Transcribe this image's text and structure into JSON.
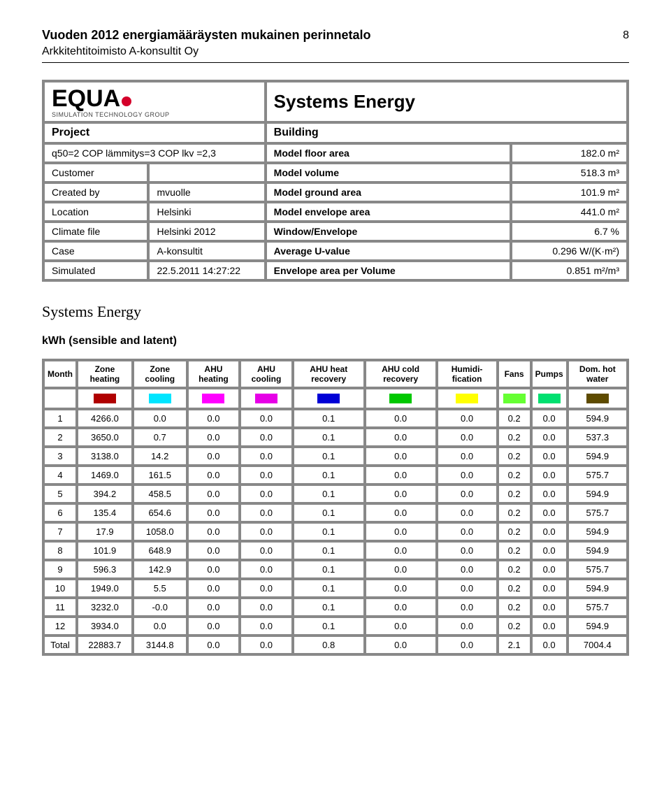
{
  "header": {
    "title": "Vuoden 2012 energiamääräysten mukainen perinnetalo",
    "subtitle": "Arkkitehtitoimisto A-konsultit Oy",
    "page": "8"
  },
  "logo": {
    "text": "EQUA",
    "sub": "SIMULATION TECHNOLOGY GROUP",
    "dot_color": "#d4002a"
  },
  "report_title": "Systems Energy",
  "meta_header": {
    "left": "Project",
    "right": "Building"
  },
  "meta": [
    {
      "l1": "q50=2 COP lämmitys=3 COP lkv =2,3",
      "l2": "",
      "r1": "Model floor area",
      "r2": "182.0 m²"
    },
    {
      "l1": "Customer",
      "l2": "",
      "r1": "Model volume",
      "r2": "518.3 m³"
    },
    {
      "l1": "Created by",
      "l2": "mvuolle",
      "r1": "Model ground area",
      "r2": "101.9 m²"
    },
    {
      "l1": "Location",
      "l2": "Helsinki",
      "r1": "Model envelope area",
      "r2": "441.0 m²"
    },
    {
      "l1": "Climate file",
      "l2": "Helsinki 2012",
      "r1": "Window/Envelope",
      "r2": "6.7 %"
    },
    {
      "l1": "Case",
      "l2": "A-konsultit",
      "r1": "Average U-value",
      "r2": "0.296 W/(K·m²)"
    },
    {
      "l1": "Simulated",
      "l2": "22.5.2011 14:27:22",
      "r1": "Envelope area per Volume",
      "r2": "0.851 m²/m³"
    }
  ],
  "section_title": "Systems Energy",
  "sub_section": "kWh (sensible and latent)",
  "columns": [
    "Month",
    "Zone heating",
    "Zone cooling",
    "AHU heating",
    "AHU cooling",
    "AHU heat recovery",
    "AHU cold recovery",
    "Humidi-fication",
    "Fans",
    "Pumps",
    "Dom. hot water"
  ],
  "swatch_colors": [
    "",
    "#b00000",
    "#00e5ff",
    "#ff00ff",
    "#e600e6",
    "#0000d6",
    "#00c800",
    "#ffff00",
    "#66ff33",
    "#00e070",
    "#5e4b00"
  ],
  "rows": [
    [
      "1",
      "4266.0",
      "0.0",
      "0.0",
      "0.0",
      "0.1",
      "0.0",
      "0.0",
      "0.2",
      "0.0",
      "594.9"
    ],
    [
      "2",
      "3650.0",
      "0.7",
      "0.0",
      "0.0",
      "0.1",
      "0.0",
      "0.0",
      "0.2",
      "0.0",
      "537.3"
    ],
    [
      "3",
      "3138.0",
      "14.2",
      "0.0",
      "0.0",
      "0.1",
      "0.0",
      "0.0",
      "0.2",
      "0.0",
      "594.9"
    ],
    [
      "4",
      "1469.0",
      "161.5",
      "0.0",
      "0.0",
      "0.1",
      "0.0",
      "0.0",
      "0.2",
      "0.0",
      "575.7"
    ],
    [
      "5",
      "394.2",
      "458.5",
      "0.0",
      "0.0",
      "0.1",
      "0.0",
      "0.0",
      "0.2",
      "0.0",
      "594.9"
    ],
    [
      "6",
      "135.4",
      "654.6",
      "0.0",
      "0.0",
      "0.1",
      "0.0",
      "0.0",
      "0.2",
      "0.0",
      "575.7"
    ],
    [
      "7",
      "17.9",
      "1058.0",
      "0.0",
      "0.0",
      "0.1",
      "0.0",
      "0.0",
      "0.2",
      "0.0",
      "594.9"
    ],
    [
      "8",
      "101.9",
      "648.9",
      "0.0",
      "0.0",
      "0.1",
      "0.0",
      "0.0",
      "0.2",
      "0.0",
      "594.9"
    ],
    [
      "9",
      "596.3",
      "142.9",
      "0.0",
      "0.0",
      "0.1",
      "0.0",
      "0.0",
      "0.2",
      "0.0",
      "575.7"
    ],
    [
      "10",
      "1949.0",
      "5.5",
      "0.0",
      "0.0",
      "0.1",
      "0.0",
      "0.0",
      "0.2",
      "0.0",
      "594.9"
    ],
    [
      "11",
      "3232.0",
      "-0.0",
      "0.0",
      "0.0",
      "0.1",
      "0.0",
      "0.0",
      "0.2",
      "0.0",
      "575.7"
    ],
    [
      "12",
      "3934.0",
      "0.0",
      "0.0",
      "0.0",
      "0.1",
      "0.0",
      "0.0",
      "0.2",
      "0.0",
      "594.9"
    ],
    [
      "Total",
      "22883.7",
      "3144.8",
      "0.0",
      "0.0",
      "0.8",
      "0.0",
      "0.0",
      "2.1",
      "0.0",
      "7004.4"
    ]
  ],
  "colors": {
    "border": "#888888",
    "text": "#000000",
    "background": "#ffffff"
  }
}
